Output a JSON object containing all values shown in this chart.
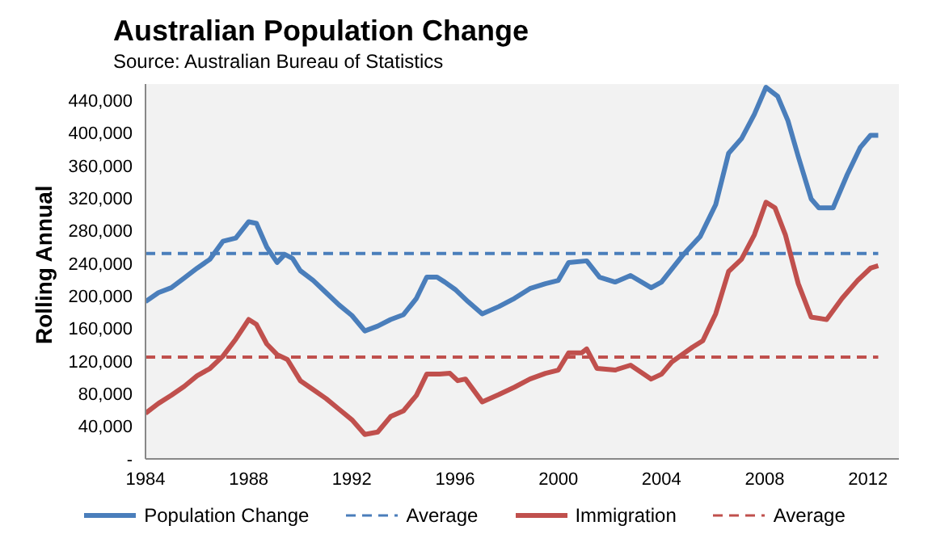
{
  "chart_data": {
    "type": "line",
    "title": "Australian Population Change",
    "subtitle": "Source: Australian Bureau of Statistics",
    "ylabel": "Rolling Annual",
    "xlim": [
      1984,
      2013.2
    ],
    "xticks": [
      1984,
      1988,
      1992,
      1996,
      2000,
      2004,
      2008,
      2012
    ],
    "ylim": [
      0,
      460000
    ],
    "yticks": [
      {
        "value": 0,
        "label": "-"
      },
      {
        "value": 40000,
        "label": "40,000"
      },
      {
        "value": 80000,
        "label": "80,000"
      },
      {
        "value": 120000,
        "label": "120,000"
      },
      {
        "value": 160000,
        "label": "160,000"
      },
      {
        "value": 200000,
        "label": "200,000"
      },
      {
        "value": 240000,
        "label": "240,000"
      },
      {
        "value": 280000,
        "label": "280,000"
      },
      {
        "value": 320000,
        "label": "320,000"
      },
      {
        "value": 360000,
        "label": "360,000"
      },
      {
        "value": 400000,
        "label": "400,000"
      },
      {
        "value": 440000,
        "label": "440,000"
      }
    ],
    "grid": false,
    "legend": "bottom",
    "marker": "none",
    "series": [
      {
        "name": "Population Change",
        "color": "#4a7ebb",
        "line_style": "solid",
        "x": [
          1984,
          1984.5,
          1985,
          1985.5,
          1986,
          1986.5,
          1987,
          1987.5,
          1988,
          1988.3,
          1988.7,
          1989.1,
          1989.4,
          1989.7,
          1990,
          1990.5,
          1991,
          1991.5,
          1992,
          1992.5,
          1993,
          1993.5,
          1994,
          1994.5,
          1994.9,
          1995.3,
          1995.6,
          1996,
          1996.5,
          1997.05,
          1997.7,
          1998.3,
          1998.9,
          1999.5,
          2000,
          2000.4,
          2001.1,
          2001.6,
          2002.2,
          2002.8,
          2003.6,
          2004,
          2004.8,
          2005.5,
          2006.1,
          2006.6,
          2007.1,
          2007.6,
          2008.05,
          2008.5,
          2008.9,
          2009.3,
          2009.8,
          2010.1,
          2010.65,
          2011.2,
          2011.7,
          2012.1,
          2012.4
        ],
        "values": [
          193000,
          204000,
          210000,
          222000,
          234000,
          245000,
          267000,
          271000,
          291000,
          289000,
          260000,
          241000,
          251000,
          246000,
          231000,
          219000,
          204000,
          189000,
          176000,
          157000,
          163000,
          171000,
          177000,
          197000,
          223000,
          223000,
          217000,
          208000,
          193000,
          178000,
          187000,
          197000,
          209000,
          215000,
          219000,
          241000,
          243000,
          223000,
          217000,
          225000,
          210000,
          217000,
          249000,
          273000,
          312000,
          375000,
          393000,
          423000,
          456000,
          445000,
          415000,
          371000,
          319000,
          308000,
          308000,
          349000,
          382000,
          397000,
          397000
        ]
      },
      {
        "name": "Average",
        "color": "#4a7ebb",
        "line_style": "dashed",
        "x": [
          1984,
          2012.4
        ],
        "values": [
          252000,
          252000
        ]
      },
      {
        "name": "Immigration",
        "color": "#c0504d",
        "line_style": "solid",
        "x": [
          1984,
          1984.5,
          1985,
          1985.5,
          1986,
          1986.5,
          1987,
          1987.5,
          1988,
          1988.3,
          1988.7,
          1989.1,
          1989.5,
          1990,
          1990.5,
          1991,
          1991.5,
          1992,
          1992.5,
          1993,
          1993.5,
          1994,
          1994.5,
          1994.9,
          1995.4,
          1995.8,
          1996.1,
          1996.4,
          1997.05,
          1997.7,
          1998.3,
          1998.9,
          1999.5,
          2000,
          2000.4,
          2000.9,
          2001.1,
          2001.5,
          2002.2,
          2002.8,
          2003.6,
          2004,
          2004.4,
          2005.2,
          2005.6,
          2006.1,
          2006.6,
          2007.1,
          2007.6,
          2008.05,
          2008.4,
          2008.8,
          2009.3,
          2009.8,
          2010.4,
          2011,
          2011.6,
          2012.1,
          2012.4
        ],
        "values": [
          56000,
          68000,
          78000,
          89000,
          102000,
          111000,
          126000,
          147000,
          171000,
          165000,
          141000,
          128000,
          122000,
          96000,
          85000,
          74000,
          61000,
          48000,
          30000,
          33000,
          52000,
          59000,
          78000,
          104000,
          104000,
          105000,
          96000,
          98000,
          70000,
          79000,
          88000,
          98000,
          105000,
          109000,
          130000,
          130000,
          135000,
          111000,
          109000,
          115000,
          98000,
          104000,
          119000,
          137000,
          145000,
          178000,
          230000,
          245000,
          275000,
          315000,
          308000,
          275000,
          215000,
          174000,
          171000,
          197000,
          219000,
          234000,
          237000
        ]
      },
      {
        "name": "Average",
        "color": "#c0504d",
        "line_style": "dashed",
        "x": [
          1984,
          2012.4
        ],
        "values": [
          125000,
          125000
        ]
      }
    ]
  }
}
